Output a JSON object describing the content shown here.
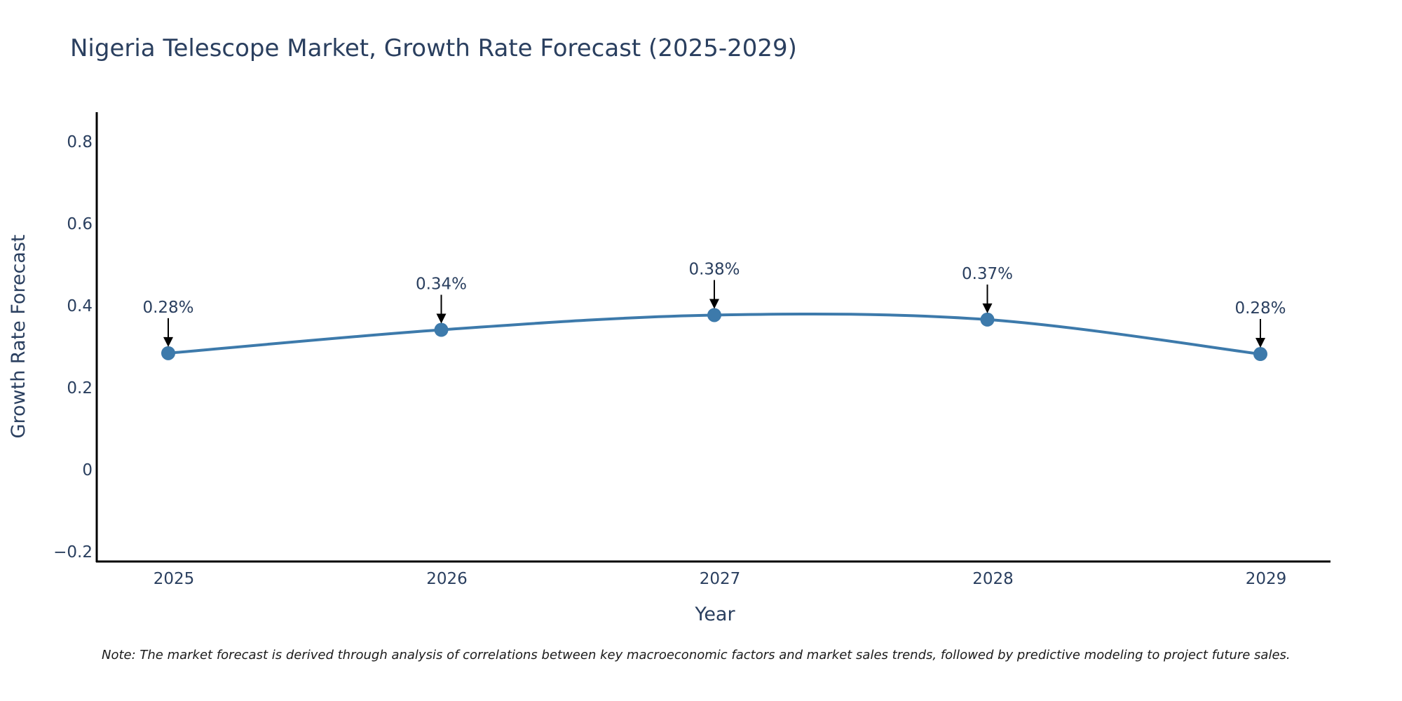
{
  "chart_data": {
    "type": "line",
    "title": "Nigeria Telescope Market, Growth Rate Forecast (2025-2029)",
    "xlabel": "Year",
    "ylabel": "Growth Rate Forecast",
    "categories": [
      "2025",
      "2026",
      "2027",
      "2028",
      "2029"
    ],
    "series": [
      {
        "name": "Growth Rate Forecast",
        "values": [
          0.284,
          0.341,
          0.377,
          0.366,
          0.282
        ],
        "labels": [
          "0.28%",
          "0.34%",
          "0.38%",
          "0.37%",
          "0.28%"
        ],
        "color": "#3d7aab"
      }
    ],
    "ylim": [
      -0.22,
      0.88
    ],
    "yticks": [
      -0.2,
      0,
      0.2,
      0.4,
      0.6,
      0.8
    ],
    "ytick_labels": [
      "−0.2",
      "0",
      "0.2",
      "0.4",
      "0.6",
      "0.8"
    ],
    "grid": false,
    "line_shape": "spline",
    "note": "Note: The market forecast is derived through analysis of correlations between key macroeconomic factors and market sales trends, followed by predictive modeling to project future sales."
  }
}
